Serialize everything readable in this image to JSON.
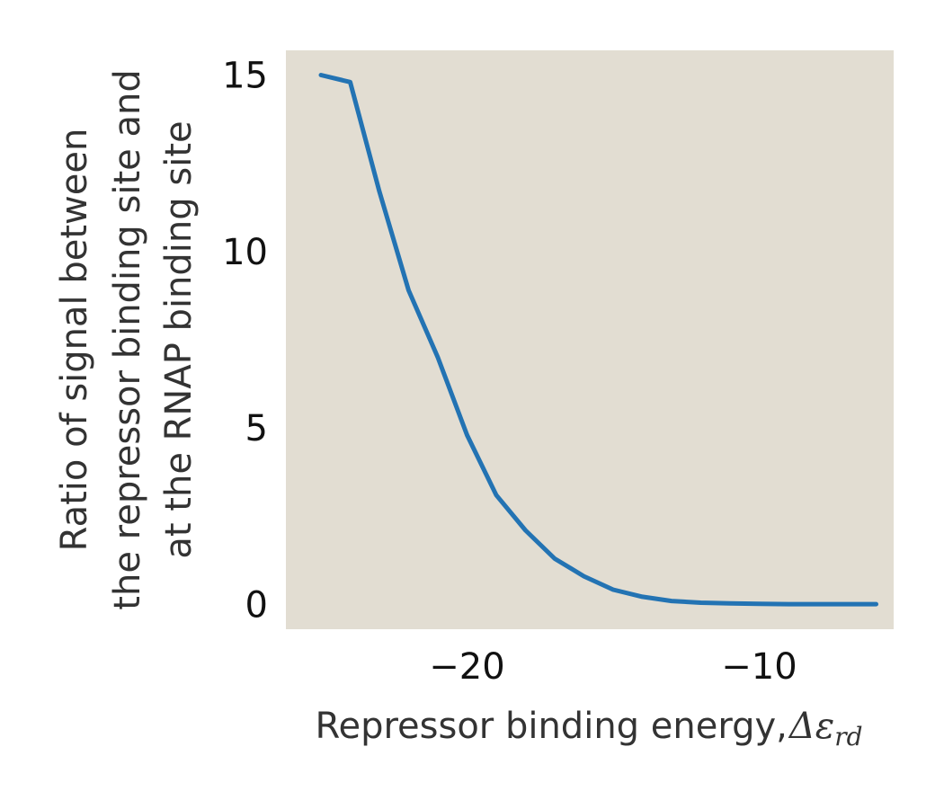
{
  "chart_data": {
    "type": "line",
    "xlabel": "Repressor binding energy,",
    "xlabel_symbol": "Δε",
    "xlabel_subscript": "rd",
    "ylabel_lines": [
      "Ratio of signal between",
      "the repressor binding site and",
      "at the RNAP binding site"
    ],
    "xlim": [
      -26.2,
      -5.4
    ],
    "ylim": [
      -0.7,
      15.7
    ],
    "xticks": [
      {
        "value": -20,
        "label": "−20"
      },
      {
        "value": -10,
        "label": "−10"
      }
    ],
    "yticks": [
      {
        "value": 0,
        "label": "0"
      },
      {
        "value": 5,
        "label": "5"
      },
      {
        "value": 10,
        "label": "10"
      },
      {
        "value": 15,
        "label": "15"
      }
    ],
    "grid": false,
    "plot_background": "#e2ddd2",
    "line_color": "#2373b3",
    "series": [
      {
        "x": [
          -25,
          -24,
          -23,
          -22,
          -21,
          -20,
          -19,
          -18,
          -17,
          -16,
          -15,
          -14,
          -13,
          -12,
          -11,
          -10,
          -9,
          -8,
          -7,
          -6
        ],
        "y": [
          15.0,
          14.8,
          11.7,
          8.9,
          7.0,
          4.8,
          3.1,
          2.1,
          1.3,
          0.8,
          0.42,
          0.22,
          0.1,
          0.05,
          0.03,
          0.02,
          0.01,
          0.01,
          0.01,
          0.01
        ]
      }
    ]
  }
}
